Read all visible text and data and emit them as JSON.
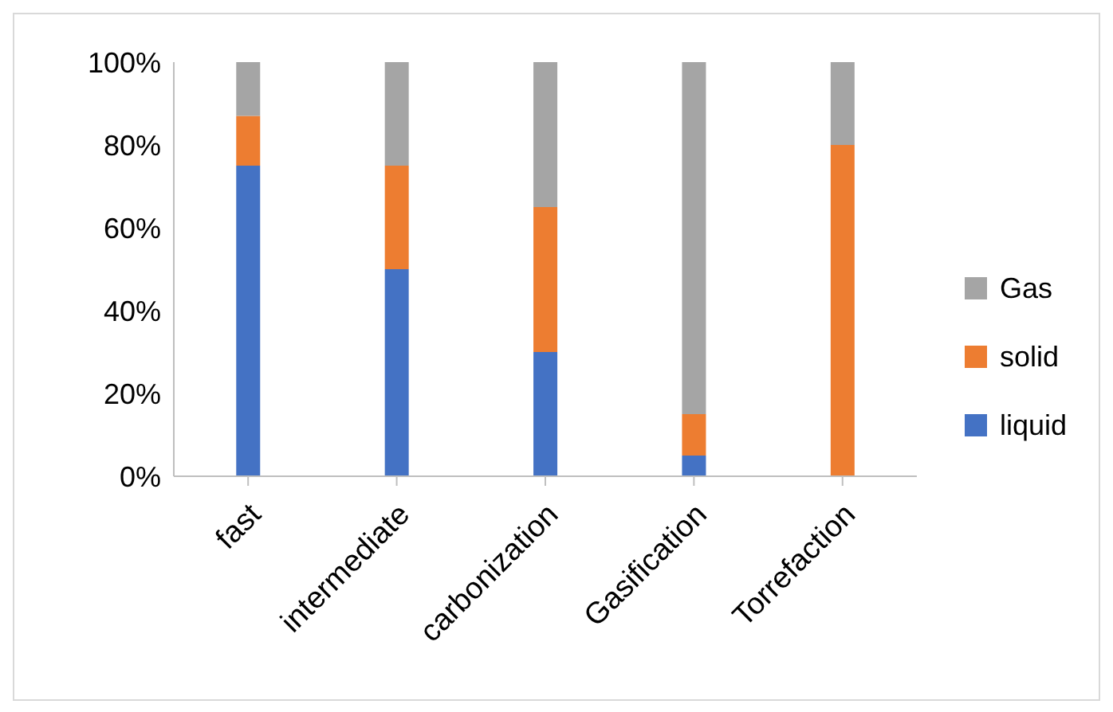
{
  "chart_data": {
    "type": "bar",
    "stacked": true,
    "categories": [
      "fast",
      "intermediate",
      "carbonization",
      "Gasification",
      "Torrefaction"
    ],
    "series": [
      {
        "name": "liquid",
        "color": "#4472c4",
        "values": [
          75,
          50,
          30,
          5,
          0
        ]
      },
      {
        "name": "solid",
        "color": "#ed7d31",
        "values": [
          12,
          25,
          35,
          10,
          80
        ]
      },
      {
        "name": "Gas",
        "color": "#a5a5a5",
        "values": [
          13,
          25,
          35,
          85,
          20
        ]
      }
    ],
    "ylim": [
      0,
      100
    ],
    "yticks": [
      {
        "value": 0,
        "label": "0%"
      },
      {
        "value": 20,
        "label": "20%"
      },
      {
        "value": 40,
        "label": "40%"
      },
      {
        "value": 60,
        "label": "60%"
      },
      {
        "value": 80,
        "label": "80%"
      },
      {
        "value": 100,
        "label": "100%"
      }
    ],
    "grid": false,
    "legend": "right"
  }
}
